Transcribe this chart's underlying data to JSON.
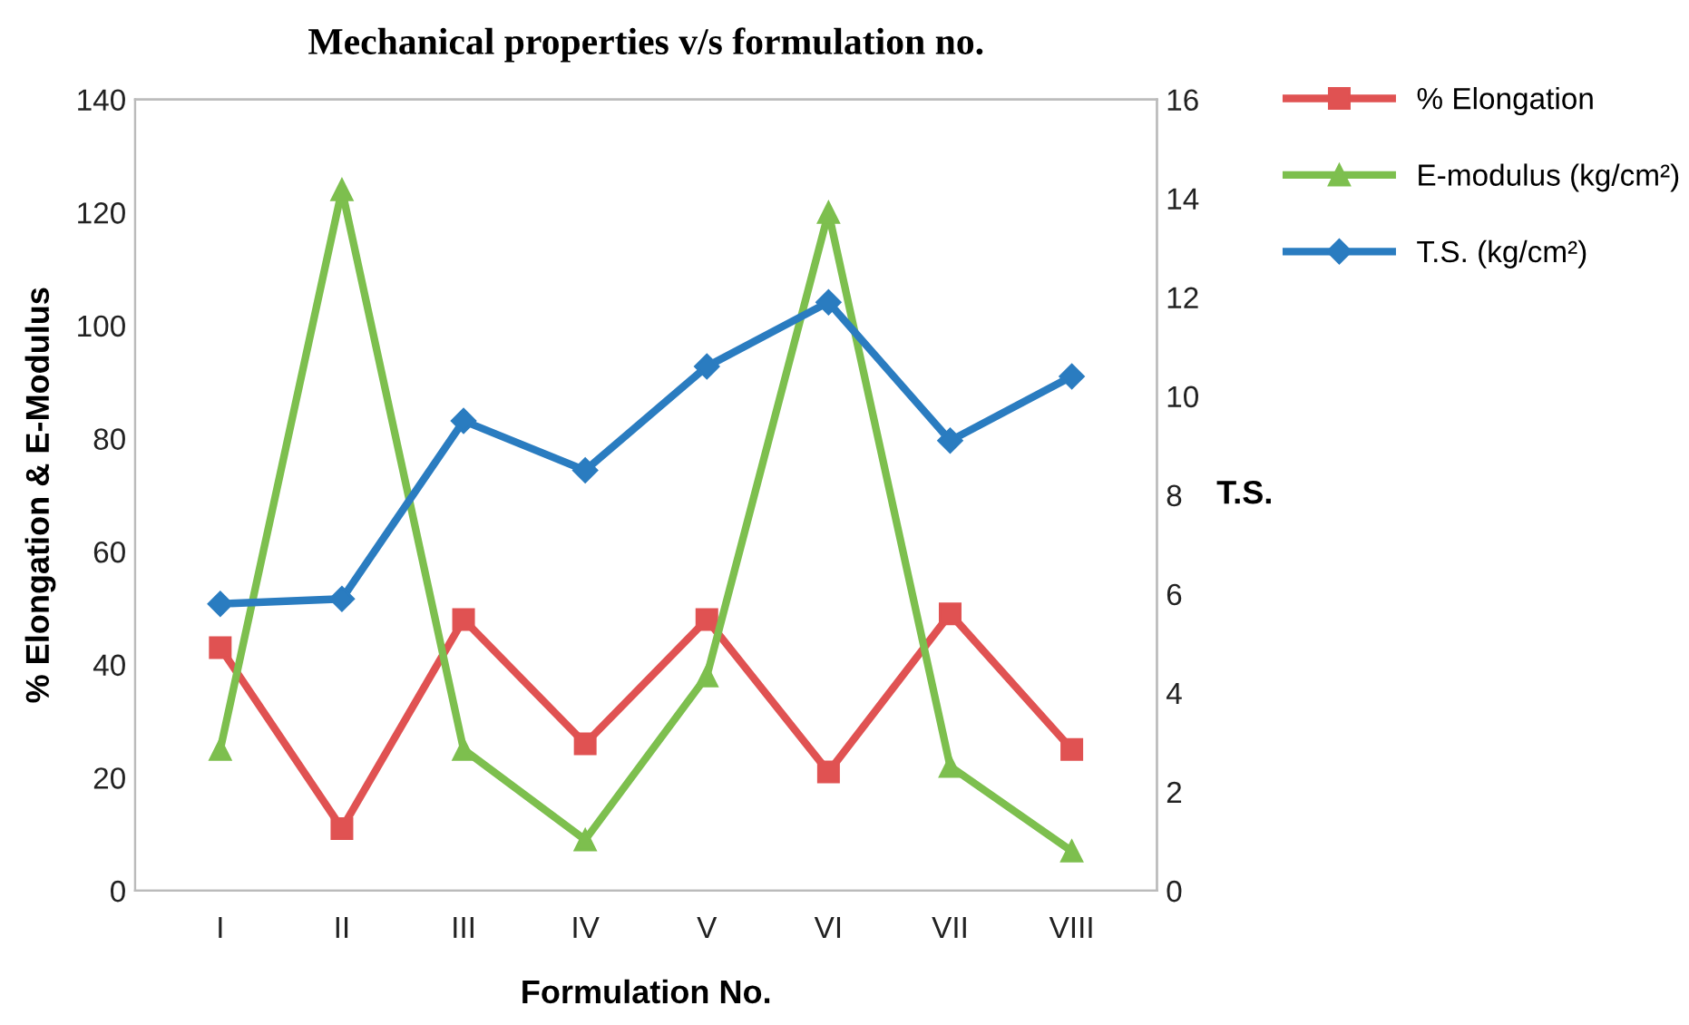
{
  "chart_data": {
    "type": "line",
    "title": "Mechanical properties v/s formulation no.",
    "xlabel": "Formulation No.",
    "ylabel": "% Elongation & E-Modulus",
    "y2label": "T.S.",
    "categories": [
      "I",
      "II",
      "III",
      "IV",
      "V",
      "VI",
      "VII",
      "VIII"
    ],
    "series": [
      {
        "name": "% Elongation",
        "color": "#e05252",
        "marker": "square",
        "values": [
          43,
          11,
          48,
          26,
          48,
          21,
          49,
          25
        ]
      },
      {
        "name": "E-modulus (kg/cm²)",
        "color": "#7dbf4e",
        "marker": "triangle",
        "values": [
          25,
          124,
          25,
          9,
          38,
          120,
          22,
          7
        ]
      },
      {
        "name": "T.S. (kg/cm²)",
        "color": "#2a7cc0",
        "marker": "diamond",
        "axis": "y2",
        "values": [
          5.8,
          5.9,
          9.5,
          8.5,
          10.6,
          11.9,
          9.1,
          10.4
        ]
      }
    ],
    "ylim": [
      0,
      140
    ],
    "yticks": [
      0,
      20,
      40,
      60,
      80,
      100,
      120,
      140
    ],
    "y2lim": [
      0,
      16
    ],
    "y2ticks": [
      0,
      2,
      4,
      6,
      8,
      10,
      12,
      14,
      16
    ],
    "legend": "right",
    "grid": false,
    "line_style": "solid"
  }
}
